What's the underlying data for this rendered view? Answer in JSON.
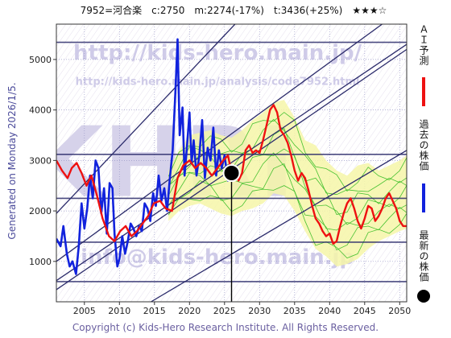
{
  "header": {
    "title": "7952=河合楽　c:2750　m:2274(-17%)　t:3436(+25%)　★★★☆"
  },
  "watermarks": {
    "url_main": "http://kids-hero.main.jp/",
    "url_sub": "http://kids-hero.main.jp/analysis/code7952.html",
    "email": "info@kids-hero.main.jp",
    "brand": "KHRI"
  },
  "side_label": "Generated on Monday 2026/1/5.",
  "copyright": "Copyright (c) Kids-Hero Research Institute. All Rights Reserved.",
  "legend": {
    "ai": "ＡＩ予測",
    "past": "過去の株価",
    "latest": "最新の株価"
  },
  "colors": {
    "ai_forecast": "#ee1111",
    "past_price": "#1122dd",
    "latest_dot": "#000000",
    "trend_lines": "#2b2b6b",
    "band_fill": "#f6f6a8",
    "green_lines": "#33bb22"
  },
  "chart_data": {
    "type": "line",
    "xlim": [
      2001,
      2051
    ],
    "ylim": [
      200,
      5700
    ],
    "x_ticks": [
      2005,
      2010,
      2015,
      2020,
      2025,
      2030,
      2035,
      2040,
      2045,
      2050
    ],
    "y_ticks": [
      1000,
      2000,
      3000,
      4000,
      5000
    ],
    "horizontal_levels": [
      600,
      1380,
      2250,
      3120,
      5340
    ],
    "current_date": 2026.0,
    "latest_price": 2750,
    "trend_lines": [
      {
        "x": [
          2001,
          2026.5
        ],
        "y": [
          1950,
          5700
        ]
      },
      {
        "x": [
          2001,
          2047.5
        ],
        "y": [
          1000,
          5700
        ]
      },
      {
        "x": [
          2001,
          2051
        ],
        "y": [
          620,
          5300
        ]
      },
      {
        "x": [
          2001,
          2051
        ],
        "y": [
          440,
          5200
        ]
      },
      {
        "x": [
          2014.5,
          2051
        ],
        "y": [
          200,
          3200
        ]
      }
    ],
    "series": [
      {
        "name": "過去の株価",
        "x": [
          2001.0,
          2001.6,
          2002.0,
          2002.5,
          2002.9,
          2003.3,
          2003.8,
          2004.2,
          2004.6,
          2005.0,
          2005.4,
          2005.8,
          2006.2,
          2006.6,
          2007.0,
          2007.4,
          2007.8,
          2008.2,
          2008.6,
          2009.0,
          2009.3,
          2009.7,
          2010.0,
          2010.4,
          2010.8,
          2011.2,
          2011.6,
          2012.0,
          2012.4,
          2012.8,
          2013.2,
          2013.6,
          2014.0,
          2014.4,
          2014.8,
          2015.2,
          2015.6,
          2016.0,
          2016.4,
          2016.8,
          2017.2,
          2017.6,
          2018.0,
          2018.3,
          2018.6,
          2019.0,
          2019.3,
          2019.6,
          2020.0,
          2020.3,
          2020.6,
          2021.0,
          2021.4,
          2021.8,
          2022.2,
          2022.6,
          2023.0,
          2023.4,
          2023.8,
          2024.2,
          2024.6,
          2025.0,
          2025.5,
          2026.0
        ],
        "y": [
          1450,
          1300,
          1700,
          1150,
          900,
          1000,
          750,
          1300,
          2150,
          1650,
          2050,
          2700,
          2250,
          3000,
          2850,
          1950,
          2450,
          1550,
          2550,
          2450,
          1550,
          900,
          1050,
          1500,
          1150,
          1400,
          1750,
          1650,
          1500,
          1700,
          1600,
          2150,
          2050,
          1800,
          2350,
          2100,
          2700,
          2200,
          2450,
          2000,
          2650,
          3200,
          4400,
          5400,
          3500,
          4050,
          2700,
          3200,
          3950,
          2950,
          3400,
          2700,
          3100,
          3800,
          2650,
          3250,
          3000,
          3650,
          2700,
          3200,
          2850,
          3100,
          2600,
          2750
        ]
      },
      {
        "name": "ＡＩ予測",
        "x": [
          2001.0,
          2001.8,
          2002.6,
          2003.2,
          2003.9,
          2004.6,
          2005.3,
          2006.0,
          2006.8,
          2007.6,
          2008.5,
          2009.3,
          2010.1,
          2010.9,
          2011.7,
          2012.5,
          2013.3,
          2014.1,
          2014.9,
          2015.8,
          2016.6,
          2017.5,
          2018.3,
          2019.1,
          2020.0,
          2020.8,
          2021.6,
          2022.4,
          2023.2,
          2024.0,
          2024.8,
          2025.5,
          2026.0,
          2026.5,
          2027.0,
          2027.5,
          2028.0,
          2028.5,
          2029.0,
          2029.5,
          2030.0,
          2030.5,
          2031.0,
          2031.5,
          2032.0,
          2032.5,
          2033.0,
          2033.5,
          2034.0,
          2034.5,
          2035.0,
          2035.5,
          2036.0,
          2036.5,
          2037.0,
          2037.5,
          2038.0,
          2038.5,
          2039.0,
          2039.5,
          2040.0,
          2040.5,
          2041.0,
          2041.5,
          2042.0,
          2042.5,
          2043.0,
          2043.5,
          2044.0,
          2044.5,
          2045.0,
          2045.5,
          2046.0,
          2046.5,
          2047.0,
          2047.5,
          2048.0,
          2048.5,
          2049.0,
          2049.5,
          2050.0,
          2050.5,
          2051.0
        ],
        "y": [
          3000,
          2800,
          2650,
          2850,
          2950,
          2750,
          2500,
          2700,
          2300,
          1850,
          1500,
          1400,
          1600,
          1700,
          1500,
          1600,
          1750,
          1900,
          2150,
          2200,
          2050,
          2000,
          2650,
          2900,
          3000,
          2850,
          2950,
          2850,
          2700,
          2850,
          3000,
          3100,
          2750,
          2800,
          2600,
          2750,
          3200,
          3300,
          3150,
          3200,
          3150,
          3400,
          3700,
          4000,
          4100,
          3950,
          3600,
          3500,
          3350,
          3100,
          2800,
          2600,
          2750,
          2650,
          2400,
          2100,
          1850,
          1750,
          1600,
          1500,
          1550,
          1350,
          1400,
          1700,
          1950,
          2150,
          2250,
          2050,
          1800,
          1650,
          1850,
          2100,
          2050,
          1800,
          1900,
          2050,
          2250,
          2350,
          2200,
          2050,
          1800,
          1700,
          1700
        ]
      }
    ],
    "forecast_band": {
      "x": [
        2017.0,
        2018.5,
        2020.0,
        2021.5,
        2023.0,
        2024.5,
        2026.0,
        2027.5,
        2029.0,
        2030.5,
        2032.0,
        2033.5,
        2035.0,
        2036.5,
        2038.0,
        2039.5,
        2041.0,
        2042.5,
        2044.0,
        2045.5,
        2047.0,
        2048.5,
        2050.0,
        2051.0
      ],
      "upper": [
        2800,
        3200,
        3500,
        3550,
        3600,
        3500,
        3450,
        3600,
        3800,
        3950,
        4150,
        4200,
        3850,
        3400,
        3300,
        3000,
        2800,
        2700,
        2900,
        2950,
        2800,
        2900,
        3000,
        3100
      ],
      "lower": [
        1800,
        2000,
        2100,
        2150,
        2050,
        1950,
        1900,
        2000,
        2050,
        2150,
        2350,
        2300,
        2000,
        1600,
        1250,
        1100,
        900,
        950,
        1050,
        1250,
        1400,
        1500,
        1600,
        1650
      ]
    }
  }
}
